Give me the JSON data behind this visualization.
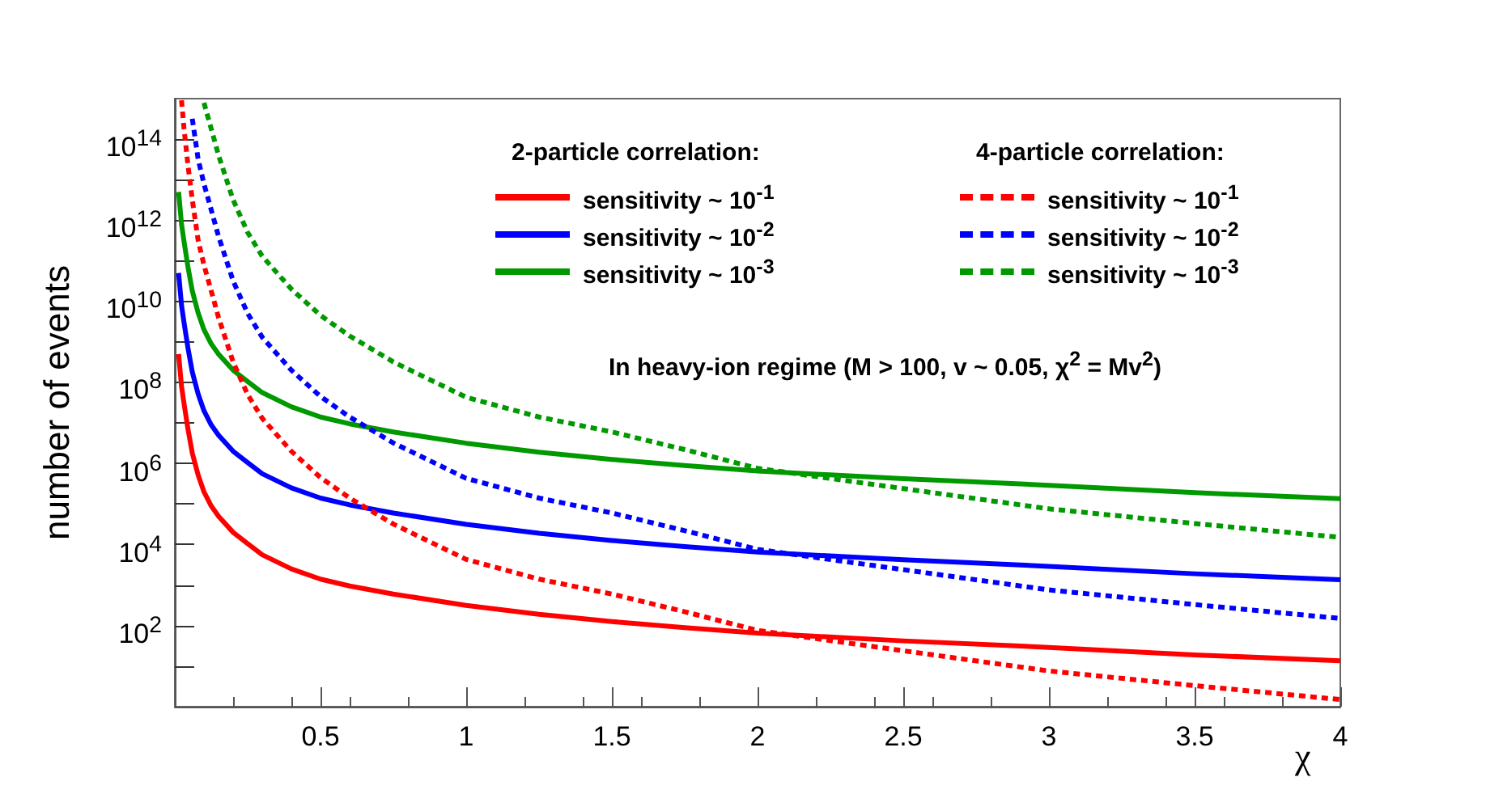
{
  "chart_data": {
    "type": "line",
    "xlabel": "χ",
    "ylabel": "number of events",
    "xlim": [
      0,
      4
    ],
    "ylim": [
      1,
      1000000000000000.0
    ],
    "log": "y",
    "xticks": [
      0.5,
      1,
      1.5,
      2,
      2.5,
      3,
      3.5,
      4
    ],
    "yticks": [
      {
        "value": 10,
        "label": null
      },
      {
        "value": 100,
        "label": "10$^{2}$"
      },
      {
        "value": 1000,
        "label": null
      },
      {
        "value": 10000,
        "label": "10$^{4}$"
      },
      {
        "value": 100000,
        "label": null
      },
      {
        "value": 1000000,
        "label": "10$^{6}$"
      },
      {
        "value": 10000000,
        "label": null
      },
      {
        "value": 100000000,
        "label": "10$^{8}$"
      },
      {
        "value": 1000000000,
        "label": null
      },
      {
        "value": 10000000000,
        "label": "10$^{10}$"
      },
      {
        "value": 100000000000,
        "label": null
      },
      {
        "value": 1000000000000,
        "label": "10$^{12}$"
      },
      {
        "value": 10000000000000,
        "label": null
      },
      {
        "value": 100000000000000,
        "label": "10$^{14}$"
      }
    ],
    "marker": "none",
    "legend": "top right",
    "annotations": [
      "2-particle correlation:",
      "4-particle correlation:",
      "In heavy-ion regime (M > 100, v ~ 0.05, χ$^{2}$ = Mv$^{2}$)"
    ],
    "series": [
      {
        "name": "sensitivity ~ 10$^{-1}$",
        "color": "#ff0000",
        "line_style": "solid",
        "x": [
          0.013,
          0.023,
          0.031,
          0.045,
          0.06,
          0.08,
          0.1,
          0.125,
          0.15,
          0.2,
          0.25,
          0.3,
          0.4,
          0.5,
          0.6,
          0.75,
          1,
          1.25,
          1.5,
          1.75,
          2,
          2.5,
          3,
          3.5,
          4
        ],
        "values": [
          500000000.0,
          80000000.0,
          32000000.0,
          7100000.0,
          1800000.0,
          520000.0,
          200000.0,
          89000.0,
          50000.0,
          20000.0,
          10500.0,
          5600.0,
          2500.0,
          1400.0,
          950,
          600,
          316,
          190,
          126,
          89,
          65,
          42,
          29,
          19,
          13.5
        ]
      },
      {
        "name": "sensitivity ~ 10$^{-2}$",
        "color": "#0000ff",
        "line_style": "solid",
        "x": [
          0.013,
          0.023,
          0.031,
          0.045,
          0.06,
          0.08,
          0.1,
          0.125,
          0.15,
          0.2,
          0.25,
          0.3,
          0.4,
          0.5,
          0.6,
          0.75,
          1,
          1.25,
          1.5,
          1.75,
          2,
          2.5,
          3,
          3.5,
          4
        ],
        "values": [
          50000000000.0,
          8000000000.0,
          3200000000.0,
          710000000.0,
          180000000.0,
          52000000.0,
          20000000.0,
          8900000.0,
          5000000.0,
          2000000.0,
          1050000.0,
          560000.0,
          250000.0,
          140000.0,
          95000.0,
          60000.0,
          31600.0,
          19000.0,
          12600.0,
          8900.0,
          6500.0,
          4200.0,
          2900.0,
          1900.0,
          1350.0
        ]
      },
      {
        "name": "sensitivity ~ 10$^{-3}$",
        "color": "#009900",
        "line_style": "solid",
        "x": [
          0.013,
          0.023,
          0.031,
          0.045,
          0.06,
          0.08,
          0.1,
          0.125,
          0.15,
          0.2,
          0.25,
          0.3,
          0.4,
          0.5,
          0.6,
          0.75,
          1,
          1.25,
          1.5,
          1.75,
          2,
          2.5,
          3,
          3.5,
          4
        ],
        "values": [
          5000000000000.0,
          800000000000.0,
          320000000000.0,
          71000000000.0,
          18000000000.0,
          5200000000.0,
          2000000000.0,
          890000000.0,
          500000000.0,
          200000000.0,
          105000000.0,
          56000000.0,
          25000000.0,
          14000000.0,
          9500000.0,
          6000000.0,
          3160000.0,
          1900000.0,
          1260000.0,
          890000.0,
          650000.0,
          420000.0,
          290000.0,
          190000.0,
          135000.0
        ]
      },
      {
        "name": "sensitivity ~ 10$^{-1}$",
        "color": "#ff0000",
        "line_style": "dashed",
        "x": [
          0.023,
          0.031,
          0.045,
          0.06,
          0.08,
          0.1,
          0.125,
          0.15,
          0.2,
          0.25,
          0.3,
          0.4,
          0.5,
          0.6,
          0.75,
          1,
          1.25,
          1.5,
          1.75,
          2,
          2.5,
          3,
          3.5,
          4
        ],
        "values": [
          910000000000000.0,
          200000000000000.0,
          23000000000000.0,
          3200000000000.0,
          320000000000.0,
          79000000000.0,
          18000000000.0,
          4000000000.0,
          320000000.0,
          50000000.0,
          13000000.0,
          2000000.0,
          450000.0,
          140000.0,
          32000.0,
          4300.0,
          1400.0,
          600,
          220,
          76,
          24,
          7.6,
          3.3,
          1.5
        ]
      },
      {
        "name": "sensitivity ~ 10$^{-2}$",
        "color": "#0000ff",
        "line_style": "dashed",
        "x": [
          0.06,
          0.08,
          0.1,
          0.125,
          0.15,
          0.2,
          0.25,
          0.3,
          0.4,
          0.5,
          0.6,
          0.75,
          1,
          1.25,
          1.5,
          1.75,
          2,
          2.5,
          3,
          3.5,
          4
        ],
        "values": [
          320000000000000.0,
          32000000000000.0,
          7900000000000.0,
          1800000000000.0,
          400000000000.0,
          32000000000.0,
          5000000000.0,
          1300000000.0,
          200000000.0,
          45000000.0,
          14000000.0,
          3200000.0,
          430000.0,
          140000.0,
          60000.0,
          22000.0,
          7600.0,
          2400.0,
          760,
          330,
          150
        ]
      },
      {
        "name": "sensitivity ~ 10$^{-3}$",
        "color": "#009900",
        "line_style": "dashed",
        "x": [
          0.1,
          0.125,
          0.15,
          0.2,
          0.25,
          0.3,
          0.4,
          0.5,
          0.6,
          0.75,
          1,
          1.25,
          1.5,
          1.75,
          2,
          2.5,
          3,
          3.5,
          4
        ],
        "values": [
          790000000000000.0,
          180000000000000.0,
          40000000000000.0,
          3200000000000.0,
          500000000000.0,
          130000000000.0,
          20000000000.0,
          4500000000.0,
          1400000000.0,
          320000000.0,
          43000000.0,
          14000000.0,
          6000000.0,
          2200000.0,
          760000.0,
          240000.0,
          76000.0,
          33000.0,
          15000.0
        ]
      }
    ]
  }
}
